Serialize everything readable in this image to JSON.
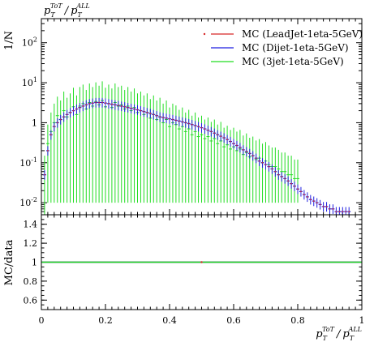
{
  "chart_data": [
    {
      "type": "line",
      "panel": "main",
      "title": "p_T^ToT / p_T^ALL",
      "ylabel": "1/N",
      "yscale": "log",
      "ylim": [
        0.005,
        400
      ],
      "xlim": [
        0,
        1
      ],
      "yticks": [
        {
          "value": 0.01,
          "label": "10^-2"
        },
        {
          "value": 0.1,
          "label": "10^-1"
        },
        {
          "value": 1,
          "label": "1"
        },
        {
          "value": 10,
          "label": "10^1"
        },
        {
          "value": 100,
          "label": "10^2"
        }
      ],
      "legend_position": "top-right",
      "series": [
        {
          "name": "MC (LeadJet-1eta-5GeV)",
          "color": "#d62728",
          "style": "points",
          "x": [
            0.01,
            0.02,
            0.03,
            0.04,
            0.05,
            0.06,
            0.07,
            0.08,
            0.09,
            0.1,
            0.11,
            0.12,
            0.13,
            0.14,
            0.15,
            0.16,
            0.17,
            0.18,
            0.19,
            0.2,
            0.21,
            0.22,
            0.23,
            0.24,
            0.25,
            0.26,
            0.27,
            0.28,
            0.29,
            0.3,
            0.31,
            0.32,
            0.33,
            0.34,
            0.35,
            0.36,
            0.37,
            0.38,
            0.39,
            0.4,
            0.41,
            0.42,
            0.43,
            0.44,
            0.45,
            0.46,
            0.47,
            0.48,
            0.49,
            0.5,
            0.51,
            0.52,
            0.53,
            0.54,
            0.55,
            0.56,
            0.57,
            0.58,
            0.59,
            0.6,
            0.61,
            0.62,
            0.63,
            0.64,
            0.65,
            0.66,
            0.67,
            0.68,
            0.69,
            0.7,
            0.71,
            0.72,
            0.73,
            0.74,
            0.75,
            0.76,
            0.77,
            0.78,
            0.79,
            0.8,
            0.81,
            0.82,
            0.83,
            0.84,
            0.85,
            0.86,
            0.87,
            0.88,
            0.89,
            0.9,
            0.91,
            0.92,
            0.93,
            0.94,
            0.95,
            0.96
          ],
          "y": [
            0.05,
            0.2,
            0.5,
            0.8,
            1.0,
            1.2,
            1.4,
            1.6,
            1.8,
            2.0,
            2.2,
            2.4,
            2.6,
            2.8,
            3.0,
            3.1,
            3.2,
            3.2,
            3.2,
            3.1,
            3.0,
            2.9,
            2.8,
            2.7,
            2.6,
            2.5,
            2.4,
            2.3,
            2.2,
            2.1,
            2.0,
            1.9,
            1.8,
            1.7,
            1.6,
            1.5,
            1.4,
            1.35,
            1.3,
            1.25,
            1.2,
            1.15,
            1.1,
            1.05,
            1.0,
            0.95,
            0.9,
            0.85,
            0.8,
            0.75,
            0.7,
            0.65,
            0.6,
            0.55,
            0.5,
            0.46,
            0.42,
            0.38,
            0.34,
            0.3,
            0.27,
            0.24,
            0.21,
            0.19,
            0.17,
            0.15,
            0.13,
            0.11,
            0.1,
            0.09,
            0.08,
            0.07,
            0.06,
            0.05,
            0.045,
            0.04,
            0.035,
            0.03,
            0.026,
            0.022,
            0.019,
            0.016,
            0.014,
            0.012,
            0.011,
            0.01,
            0.009,
            0.008,
            0.008,
            0.007,
            0.007,
            0.006,
            0.006,
            0.006,
            0.006,
            0.006
          ]
        },
        {
          "name": "MC (Dijet-1eta-5GeV)",
          "color": "#1f1fe0",
          "style": "steps",
          "x": [
            0.01,
            0.02,
            0.03,
            0.04,
            0.05,
            0.06,
            0.07,
            0.08,
            0.09,
            0.1,
            0.11,
            0.12,
            0.13,
            0.14,
            0.15,
            0.16,
            0.17,
            0.18,
            0.19,
            0.2,
            0.21,
            0.22,
            0.23,
            0.24,
            0.25,
            0.26,
            0.27,
            0.28,
            0.29,
            0.3,
            0.31,
            0.32,
            0.33,
            0.34,
            0.35,
            0.36,
            0.37,
            0.38,
            0.39,
            0.4,
            0.41,
            0.42,
            0.43,
            0.44,
            0.45,
            0.46,
            0.47,
            0.48,
            0.49,
            0.5,
            0.51,
            0.52,
            0.53,
            0.54,
            0.55,
            0.56,
            0.57,
            0.58,
            0.59,
            0.6,
            0.61,
            0.62,
            0.63,
            0.64,
            0.65,
            0.66,
            0.67,
            0.68,
            0.69,
            0.7,
            0.71,
            0.72,
            0.73,
            0.74,
            0.75,
            0.76,
            0.77,
            0.78,
            0.79,
            0.8,
            0.81,
            0.82,
            0.83,
            0.84,
            0.85,
            0.86,
            0.87,
            0.88,
            0.89,
            0.9,
            0.91,
            0.92,
            0.93,
            0.94,
            0.95,
            0.96
          ],
          "y": [
            0.05,
            0.2,
            0.5,
            0.8,
            1.0,
            1.2,
            1.4,
            1.6,
            1.8,
            2.0,
            2.2,
            2.4,
            2.6,
            2.8,
            3.0,
            3.1,
            3.2,
            3.2,
            3.2,
            3.1,
            3.0,
            2.9,
            2.8,
            2.7,
            2.6,
            2.5,
            2.4,
            2.3,
            2.2,
            2.1,
            2.0,
            1.9,
            1.8,
            1.7,
            1.6,
            1.5,
            1.4,
            1.35,
            1.3,
            1.25,
            1.2,
            1.15,
            1.1,
            1.05,
            1.0,
            0.95,
            0.9,
            0.85,
            0.8,
            0.75,
            0.7,
            0.65,
            0.6,
            0.55,
            0.5,
            0.46,
            0.42,
            0.38,
            0.34,
            0.3,
            0.27,
            0.24,
            0.21,
            0.19,
            0.17,
            0.15,
            0.13,
            0.11,
            0.1,
            0.09,
            0.08,
            0.07,
            0.06,
            0.05,
            0.045,
            0.04,
            0.035,
            0.03,
            0.026,
            0.022,
            0.019,
            0.016,
            0.014,
            0.012,
            0.011,
            0.01,
            0.009,
            0.008,
            0.008,
            0.007,
            0.007,
            0.006,
            0.006,
            0.006,
            0.006,
            0.006
          ]
        },
        {
          "name": "MC (3jet-1eta-5GeV)",
          "color": "#22dd22",
          "style": "errorbars",
          "x": [
            0.01,
            0.02,
            0.03,
            0.04,
            0.05,
            0.06,
            0.07,
            0.08,
            0.09,
            0.1,
            0.11,
            0.12,
            0.13,
            0.14,
            0.15,
            0.16,
            0.17,
            0.18,
            0.19,
            0.2,
            0.21,
            0.22,
            0.23,
            0.24,
            0.25,
            0.26,
            0.27,
            0.28,
            0.29,
            0.3,
            0.31,
            0.32,
            0.33,
            0.34,
            0.35,
            0.36,
            0.37,
            0.38,
            0.39,
            0.4,
            0.41,
            0.42,
            0.43,
            0.44,
            0.45,
            0.46,
            0.47,
            0.48,
            0.49,
            0.5,
            0.51,
            0.52,
            0.53,
            0.54,
            0.55,
            0.56,
            0.57,
            0.58,
            0.59,
            0.6,
            0.61,
            0.62,
            0.63,
            0.64,
            0.65,
            0.66,
            0.67,
            0.68,
            0.69,
            0.7,
            0.71,
            0.72,
            0.73,
            0.74,
            0.75,
            0.76,
            0.77,
            0.78,
            0.79,
            0.8
          ],
          "y": [
            0.05,
            0.3,
            0.6,
            1.0,
            1.5,
            1.2,
            2.0,
            1.4,
            1.8,
            2.5,
            1.6,
            2.6,
            3.0,
            2.2,
            3.2,
            2.6,
            3.4,
            2.8,
            3.6,
            2.5,
            3.0,
            2.4,
            3.2,
            2.6,
            2.8,
            2.2,
            2.6,
            2.0,
            2.4,
            1.8,
            2.0,
            1.6,
            1.8,
            1.3,
            1.6,
            1.2,
            1.4,
            1.0,
            1.2,
            0.8,
            1.0,
            0.9,
            0.7,
            0.8,
            0.6,
            0.7,
            0.5,
            0.6,
            0.45,
            0.5,
            0.4,
            0.45,
            0.35,
            0.4,
            0.3,
            0.35,
            0.25,
            0.28,
            0.22,
            0.25,
            0.2,
            0.22,
            0.16,
            0.18,
            0.14,
            0.15,
            0.12,
            0.13,
            0.1,
            0.11,
            0.09,
            0.08,
            0.08,
            0.07,
            0.06,
            0.06,
            0.05,
            0.05,
            0.04,
            0.04
          ],
          "yerr_down": [
            0.045,
            0.29,
            0.59,
            0.99,
            1.49,
            1.19,
            1.99,
            1.39,
            1.79,
            2.49,
            1.59,
            2.59,
            2.99,
            2.19,
            3.19,
            2.59,
            3.39,
            2.79,
            3.59,
            2.49,
            2.99,
            2.39,
            3.19,
            2.59,
            2.79,
            2.19,
            2.59,
            1.99,
            2.39,
            1.79,
            1.99,
            1.59,
            1.79,
            1.29,
            1.59,
            1.19,
            1.39,
            0.99,
            1.19,
            0.79,
            0.99,
            0.89,
            0.69,
            0.79,
            0.59,
            0.69,
            0.49,
            0.59,
            0.44,
            0.49,
            0.39,
            0.44,
            0.34,
            0.39,
            0.29,
            0.34,
            0.24,
            0.27,
            0.21,
            0.24,
            0.19,
            0.21,
            0.15,
            0.17,
            0.13,
            0.14,
            0.11,
            0.12,
            0.09,
            0.1,
            0.08,
            0.07,
            0.07,
            0.06,
            0.05,
            0.05,
            0.04,
            0.04,
            0.03,
            0.03
          ],
          "yerr_up": [
            0.1,
            0.6,
            1.2,
            2.0,
            3.0,
            2.4,
            4.0,
            2.8,
            3.6,
            5.0,
            3.2,
            5.2,
            6.0,
            4.4,
            6.4,
            5.2,
            6.8,
            5.6,
            7.2,
            5.0,
            6.0,
            4.8,
            6.4,
            5.2,
            5.6,
            4.4,
            5.2,
            4.0,
            4.8,
            3.6,
            4.0,
            3.2,
            3.6,
            2.6,
            3.2,
            2.4,
            2.8,
            2.0,
            2.4,
            1.6,
            2.0,
            1.8,
            1.4,
            1.6,
            1.2,
            1.4,
            1.0,
            1.2,
            0.9,
            1.0,
            0.8,
            0.9,
            0.7,
            0.8,
            0.6,
            0.7,
            0.5,
            0.56,
            0.44,
            0.5,
            0.4,
            0.44,
            0.32,
            0.36,
            0.28,
            0.3,
            0.24,
            0.26,
            0.2,
            0.22,
            0.18,
            0.16,
            0.16,
            0.14,
            0.12,
            0.12,
            0.1,
            0.1,
            0.08,
            0.08
          ]
        }
      ]
    },
    {
      "type": "line",
      "panel": "ratio",
      "ylabel": "MC/data",
      "xlabel": "p_T^ToT / p_T^ALL",
      "xlim": [
        0,
        1
      ],
      "ylim": [
        0.5,
        1.5
      ],
      "xticks": [
        0,
        0.2,
        0.4,
        0.6,
        0.8,
        1
      ],
      "xtick_labels": [
        "0",
        "0.2",
        "0.4",
        "0.6",
        "0.8",
        "1"
      ],
      "yticks": [
        0.6,
        0.8,
        1,
        1.2,
        1.4
      ],
      "ytick_labels": [
        "0.6",
        "0.8",
        "1",
        "1.2",
        "1.4"
      ],
      "series": [
        {
          "name": "MC (LeadJet-1eta-5GeV)",
          "color": "#d62728",
          "x": [
            0,
            1
          ],
          "y": [
            1,
            1
          ]
        },
        {
          "name": "MC (Dijet-1eta-5GeV)",
          "color": "#1f1fe0",
          "x": [
            0,
            1
          ],
          "y": [
            1,
            1
          ]
        },
        {
          "name": "MC (3jet-1eta-5GeV)",
          "color": "#22dd22",
          "x": [
            0,
            1
          ],
          "y": [
            1,
            1
          ]
        }
      ]
    }
  ],
  "labels": {
    "title_main": "p",
    "title_sup1": "ToT",
    "title_sub1": "T",
    "title_slash": "/",
    "title_main2": "p",
    "title_sup2": "ALL",
    "title_sub2": "T",
    "ylabel_main": "1/N",
    "ylabel_ratio": "MC/data"
  }
}
